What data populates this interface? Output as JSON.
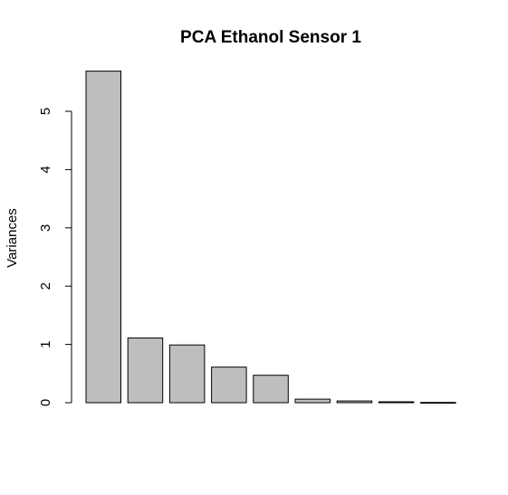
{
  "chart_data": {
    "type": "bar",
    "title": "PCA Ethanol Sensor 1",
    "xlabel": "",
    "ylabel": "Variances",
    "categories": [
      "",
      "",
      "",
      "",
      "",
      "",
      "",
      "",
      ""
    ],
    "values": [
      5.69,
      1.11,
      0.99,
      0.61,
      0.47,
      0.06,
      0.03,
      0.015,
      0.005
    ],
    "ylim": [
      0,
      5.7
    ],
    "yticks": [
      0,
      1,
      2,
      3,
      4,
      5
    ],
    "bar_color": "#bebebe",
    "grid": false,
    "legend": "none"
  }
}
